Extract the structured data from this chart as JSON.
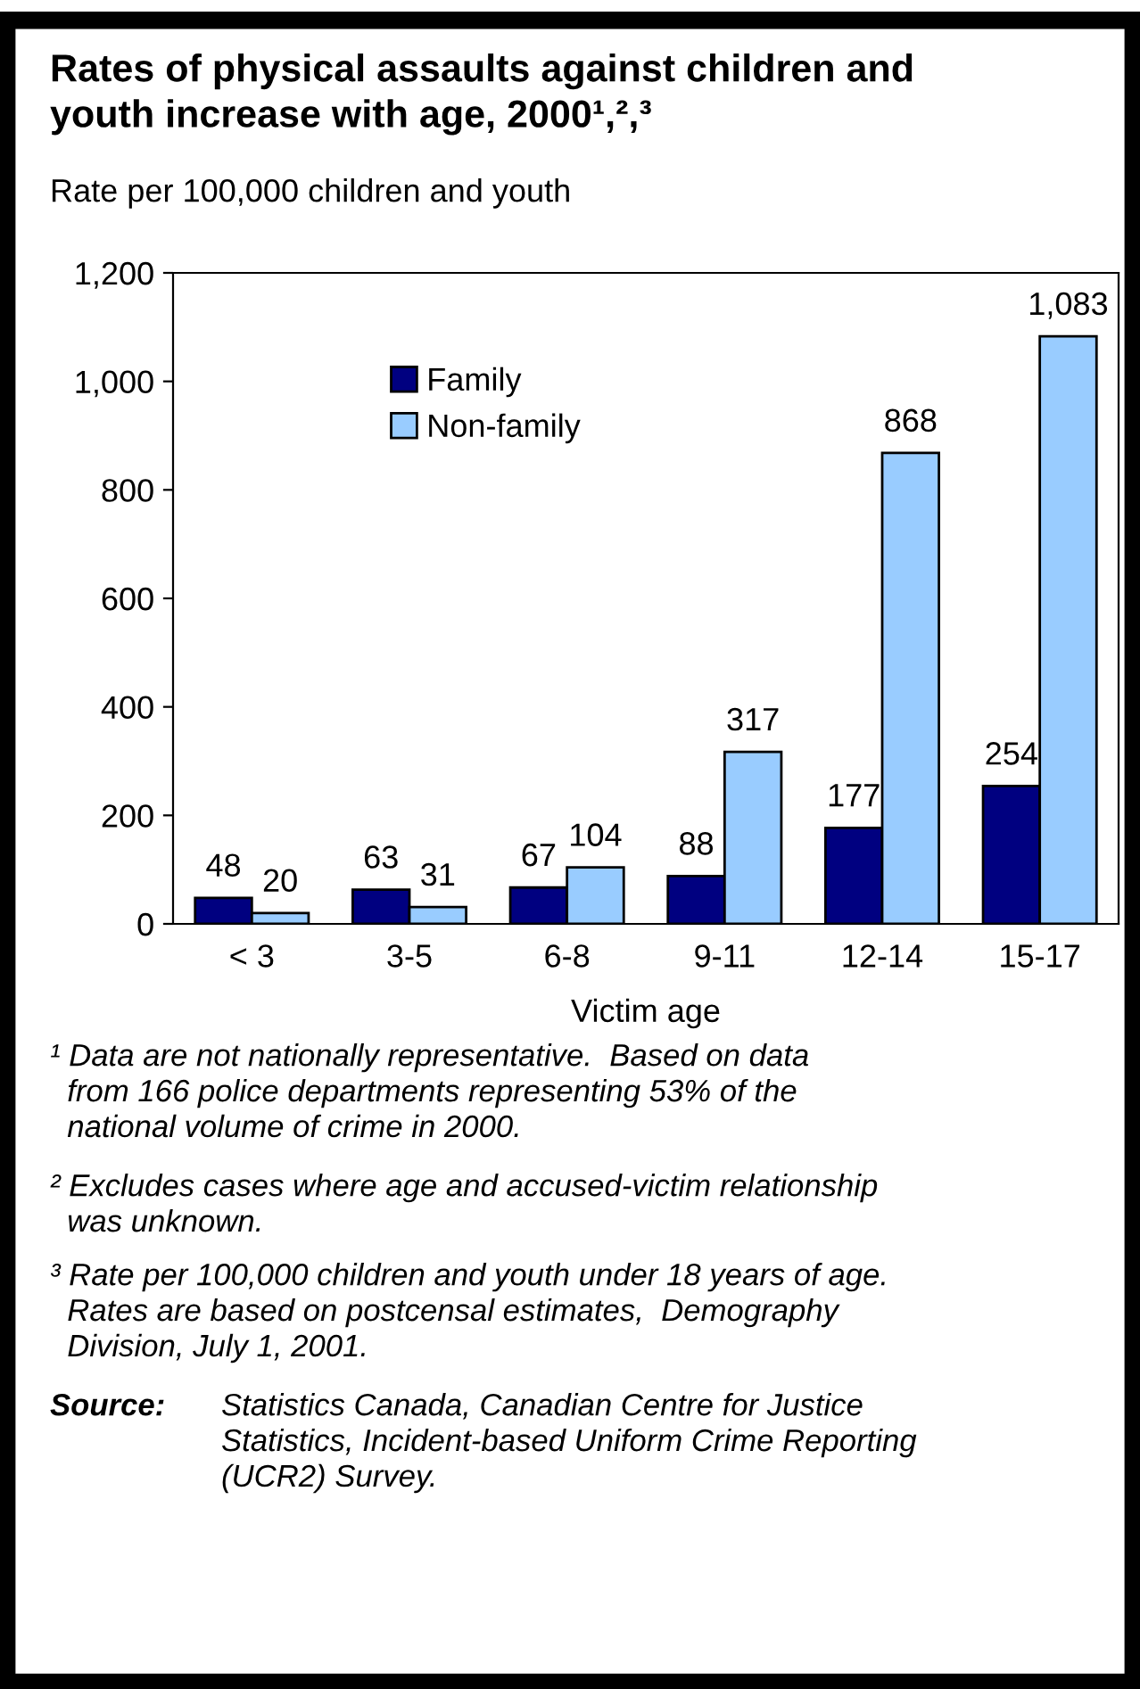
{
  "chart_data": {
    "type": "bar",
    "title": "Rates of physical assaults against children and\nyouth increase with age, 2000¹,²,³",
    "subtitle": "Rate per 100,000 children and youth",
    "xlabel": "Victim age",
    "categories": [
      "< 3",
      "3-5",
      "6-8",
      "9-11",
      "12-14",
      "15-17"
    ],
    "series": [
      {
        "name": "Family",
        "color": "#000080",
        "values": [
          48,
          63,
          67,
          88,
          177,
          254
        ],
        "value_labels": [
          "48",
          "63",
          "67",
          "88",
          "177",
          "254"
        ]
      },
      {
        "name": "Non-family",
        "color": "#99ccff",
        "values": [
          20,
          31,
          104,
          317,
          868,
          1083
        ],
        "value_labels": [
          "20",
          "31",
          "104",
          "317",
          "868",
          "1,083"
        ]
      }
    ],
    "ylim": [
      0,
      1200
    ],
    "yticks": [
      0,
      200,
      400,
      600,
      800,
      {
        "value": 1000,
        "label": "1,000"
      },
      {
        "value": 1200,
        "label": "1,200"
      }
    ],
    "grid": false,
    "legend": "top left",
    "annotations": [
      "¹ Data are not nationally representative.  Based on data\n  from 166 police departments representing 53% of the\n  national volume of crime in 2000.",
      "² Excludes cases where age and accused-victim relationship\n  was unknown.",
      "³ Rate per 100,000 children and youth under 18 years of age.\n  Rates are based on postcensal estimates,  Demography\n  Division, July 1, 2001.",
      "Source: Statistics Canada, Canadian Centre for Justice\nStatistics, Incident-based Uniform Crime Reporting\n(UCR2) Survey."
    ]
  }
}
